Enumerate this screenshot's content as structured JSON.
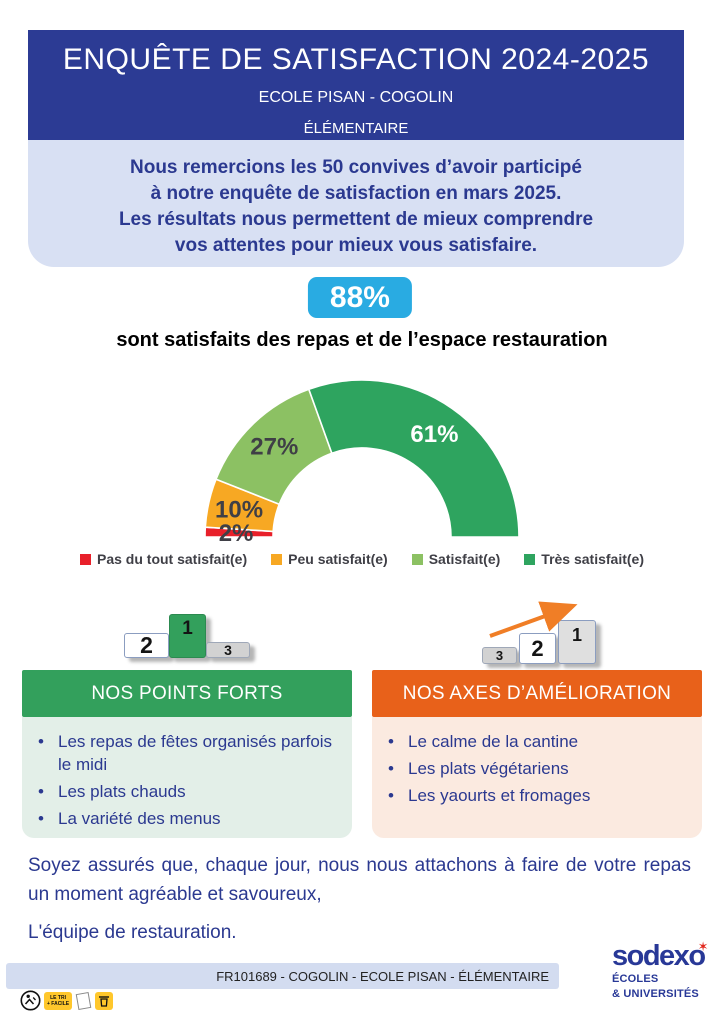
{
  "header": {
    "title": "ENQUÊTE DE SATISFACTION 2024-2025",
    "subtitle1": "ECOLE PISAN - COGOLIN",
    "subtitle2": "ÉLÉMENTAIRE",
    "bg_color": "#2C3B94"
  },
  "intro": {
    "lines": [
      "Nous remercions les 50 convives d’avoir participé",
      "à notre enquête de satisfaction en mars 2025.",
      "Les résultats nous permettent de mieux comprendre",
      "vos attentes pour mieux vous satisfaire."
    ]
  },
  "kpi": {
    "value": "88%",
    "badge_color": "#29ABE2",
    "caption": "sont satisfaits des repas et de l’espace restauration"
  },
  "chart_data": {
    "type": "donut",
    "subtype": "half-donut-gauge",
    "arc_degrees": 180,
    "unit": "percent",
    "segments": [
      {
        "label": "Pas du tout satisfait(e)",
        "value": 2,
        "color": "#E8202A",
        "label_color": "#3F3F46"
      },
      {
        "label": "Peu satisfait(e)",
        "value": 10,
        "color": "#F7A823",
        "label_color": "#3F3F46"
      },
      {
        "label": "Satisfait(e)",
        "value": 27,
        "color": "#8CC163",
        "label_color": "#3F3F46"
      },
      {
        "label": "Très satisfait(e)",
        "value": 61,
        "color": "#2EA45F",
        "label_color": "#FFFFFF"
      }
    ],
    "legend_position": "bottom"
  },
  "podiums": {
    "left": [
      "2",
      "1",
      "3"
    ],
    "right": [
      "3",
      "2",
      "1"
    ]
  },
  "panels": {
    "strengths": {
      "title": "NOS POINTS FORTS",
      "header_color": "#33A05C",
      "body_color": "#E3EFE8",
      "items": [
        "Les repas de fêtes organisés parfois le midi",
        "Les plats chauds",
        "La variété des menus"
      ]
    },
    "improvements": {
      "title": "NOS AXES D’AMÉLIORATION",
      "header_color": "#E8611A",
      "body_color": "#FBEAE0",
      "items": [
        "Le calme de la cantine",
        "Les plats végétariens",
        "Les yaourts et fromages"
      ]
    }
  },
  "closing": {
    "paragraph": "Soyez assurés que, chaque jour, nous nous attachons à faire de votre repas un moment agréable et savoureux,",
    "signature": "L'équipe de restauration."
  },
  "footer": {
    "reference": "FR101689 - COGOLIN - ECOLE PISAN - ÉLÉMENTAIRE"
  },
  "logo": {
    "brand": "sodexo",
    "star": "✶",
    "tagline1": "ÉCOLES",
    "tagline2": "& UNIVERSITÉS"
  },
  "eco_icons": {
    "sorting_badge_line1": "LE TRI",
    "sorting_badge_line2": "+ FACILE"
  }
}
